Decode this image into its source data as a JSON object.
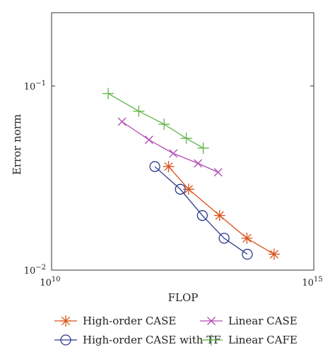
{
  "chart_data": {
    "type": "line",
    "xlabel": "FLOP",
    "ylabel": "Error norm",
    "x_scale": "log",
    "y_scale": "log",
    "xlim": [
      10000000000.0,
      1000000000000000.0
    ],
    "ylim": [
      0.01,
      0.25
    ],
    "x_ticks": [
      {
        "value": 10000000000.0,
        "base": "10",
        "exp": "10"
      },
      {
        "value": 1000000000000000.0,
        "base": "10",
        "exp": "15"
      }
    ],
    "y_ticks": [
      {
        "value": 0.1,
        "base": "10",
        "exp": "−1"
      },
      {
        "value": 0.01,
        "base": "10",
        "exp": "−2"
      }
    ],
    "grid": false,
    "legend_position": "bottom",
    "series": [
      {
        "name": "High-order CASE",
        "color": "#d95319",
        "marker": "asterisk",
        "points": [
          [
            1700000000000.0,
            0.0365
          ],
          [
            4100000000000.0,
            0.0275
          ],
          [
            16000000000000.0,
            0.0198
          ],
          [
            53000000000000.0,
            0.0149
          ],
          [
            175000000000000.0,
            0.0122
          ]
        ]
      },
      {
        "name": "High-order CASE with TF",
        "color": "#2a3a8c",
        "marker": "circle",
        "points": [
          [
            930000000000.0,
            0.0365
          ],
          [
            2850000000000.0,
            0.0275
          ],
          [
            7500000000000.0,
            0.0198
          ],
          [
            19500000000000.0,
            0.0149
          ],
          [
            54000000000000.0,
            0.0122
          ]
        ]
      },
      {
        "name": "Linear CASE",
        "color": "#b04ab4",
        "marker": "x",
        "points": [
          [
            220000000000.0,
            0.064
          ],
          [
            720000000000.0,
            0.051
          ],
          [
            2100000000000.0,
            0.043
          ],
          [
            6200000000000.0,
            0.038
          ],
          [
            15000000000000.0,
            0.034
          ]
        ]
      },
      {
        "name": "Linear CAFE",
        "color": "#5fb346",
        "marker": "plus",
        "points": [
          [
            120000000000.0,
            0.091
          ],
          [
            460000000000.0,
            0.073
          ],
          [
            1400000000000.0,
            0.062
          ],
          [
            3700000000000.0,
            0.052
          ],
          [
            7800000000000.0,
            0.046
          ]
        ]
      }
    ]
  }
}
